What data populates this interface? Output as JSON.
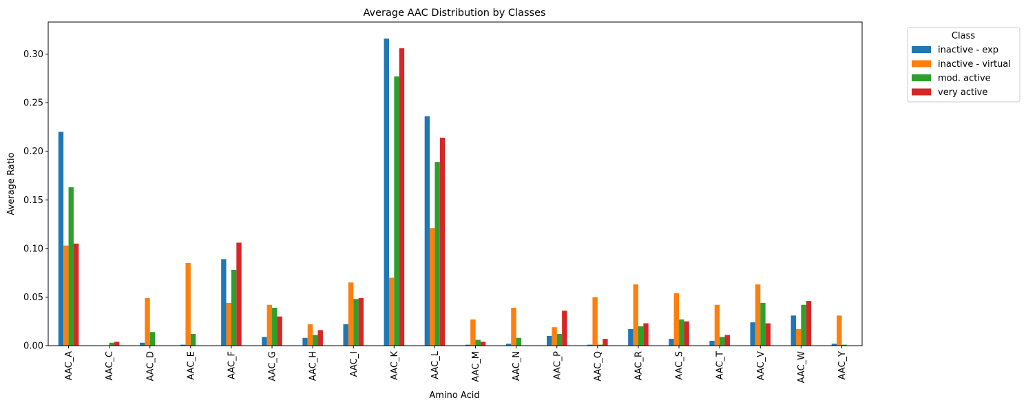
{
  "chart_data": {
    "type": "bar",
    "title": "Average AAC Distribution by Classes",
    "xlabel": "Amino Acid",
    "ylabel": "Average Ratio",
    "ylim": [
      0,
      0.333
    ],
    "yticks": [
      0.0,
      0.05,
      0.1,
      0.15,
      0.2,
      0.25,
      0.3
    ],
    "ytick_labels": [
      "0.00",
      "0.05",
      "0.10",
      "0.15",
      "0.20",
      "0.25",
      "0.30"
    ],
    "grid": false,
    "legend": {
      "title": "Class",
      "placement": "outside top-right"
    },
    "categories": [
      "AAC_A",
      "AAC_C",
      "AAC_D",
      "AAC_E",
      "AAC_F",
      "AAC_G",
      "AAC_H",
      "AAC_I",
      "AAC_K",
      "AAC_L",
      "AAC_M",
      "AAC_N",
      "AAC_P",
      "AAC_Q",
      "AAC_R",
      "AAC_S",
      "AAC_T",
      "AAC_V",
      "AAC_W",
      "AAC_Y"
    ],
    "series": [
      {
        "name": "inactive - exp",
        "color": "#1f77b4",
        "values": [
          0.22,
          0.0,
          0.003,
          0.001,
          0.089,
          0.009,
          0.008,
          0.022,
          0.316,
          0.236,
          0.001,
          0.002,
          0.01,
          0.001,
          0.017,
          0.007,
          0.005,
          0.024,
          0.031,
          0.002
        ]
      },
      {
        "name": "inactive - virtual",
        "color": "#ff7f0e",
        "values": [
          0.103,
          0.0,
          0.049,
          0.085,
          0.044,
          0.042,
          0.022,
          0.065,
          0.07,
          0.121,
          0.027,
          0.039,
          0.019,
          0.05,
          0.063,
          0.054,
          0.042,
          0.063,
          0.017,
          0.031
        ]
      },
      {
        "name": "mod. active",
        "color": "#2ca02c",
        "values": [
          0.163,
          0.003,
          0.014,
          0.012,
          0.078,
          0.039,
          0.011,
          0.048,
          0.277,
          0.189,
          0.006,
          0.008,
          0.012,
          0.001,
          0.02,
          0.027,
          0.009,
          0.044,
          0.042,
          0.001
        ]
      },
      {
        "name": "very active",
        "color": "#d62728",
        "values": [
          0.105,
          0.004,
          0.0,
          0.0,
          0.106,
          0.03,
          0.016,
          0.049,
          0.306,
          0.214,
          0.004,
          0.0,
          0.036,
          0.007,
          0.023,
          0.025,
          0.011,
          0.023,
          0.046,
          0.0
        ]
      }
    ]
  }
}
